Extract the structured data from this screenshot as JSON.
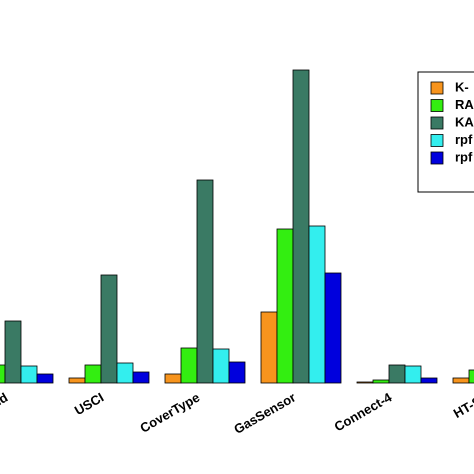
{
  "chart_data": {
    "type": "bar",
    "categories": [
      "and",
      "USCI",
      "CoverType",
      "GasSensor",
      "Connect-4",
      "HT-Se"
    ],
    "series": [
      {
        "name": "K-",
        "color": "#f7941d",
        "values": [
          null,
          5,
          9,
          71,
          1,
          5
        ]
      },
      {
        "name": "RA",
        "color": "#33ee11",
        "values": [
          18,
          18,
          35,
          154,
          3,
          13
        ]
      },
      {
        "name": "KA",
        "color": "#3a7a64",
        "values": [
          62,
          108,
          203,
          313,
          18,
          null
        ]
      },
      {
        "name": "rpf",
        "color": "#33eeee",
        "values": [
          17,
          20,
          34,
          157,
          17,
          null
        ]
      },
      {
        "name": "rpf",
        "color": "#0000dd",
        "values": [
          9,
          11,
          21,
          110,
          5,
          null
        ]
      }
    ],
    "ylim": [
      0,
      320
    ]
  }
}
